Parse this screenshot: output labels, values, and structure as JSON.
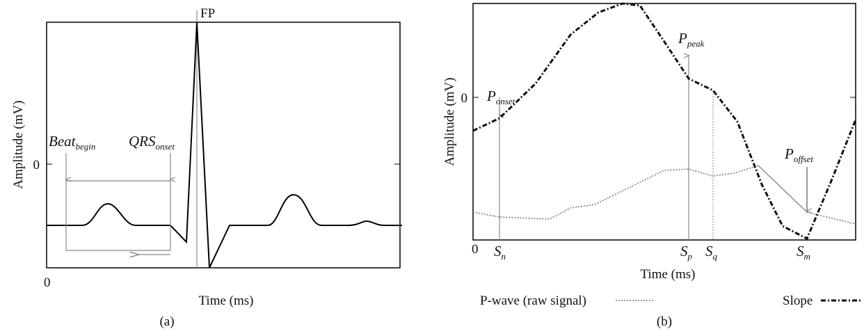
{
  "panels": [
    {
      "caption": "(a)",
      "y_axis_label": "Amplitude (mV)",
      "x_axis_label": "Time (ms)",
      "y_zero": "0",
      "origin": "0",
      "markers": {
        "fp": "FP",
        "beat_begin": {
          "base": "Beat",
          "sub": "begin"
        },
        "qrs_onset": {
          "base": "QRS",
          "sub": "onset"
        }
      }
    },
    {
      "caption": "(b)",
      "y_axis_label": "Amplitude (mV)",
      "x_axis_label": "Time (ms)",
      "y_zero": "0",
      "origin": "0",
      "markers": {
        "p_onset": {
          "base": "P",
          "sub": "onset"
        },
        "p_peak": {
          "base": "P",
          "sub": "peak"
        },
        "p_offset": {
          "base": "P",
          "sub": "offset"
        },
        "s_n": {
          "base": "S",
          "sub": "n"
        },
        "s_p": {
          "base": "S",
          "sub": "p"
        },
        "s_q": {
          "base": "S",
          "sub": "q"
        },
        "s_m": {
          "base": "S",
          "sub": "m"
        }
      },
      "legend": [
        "P-wave (raw signal)",
        "Slope"
      ]
    }
  ]
}
